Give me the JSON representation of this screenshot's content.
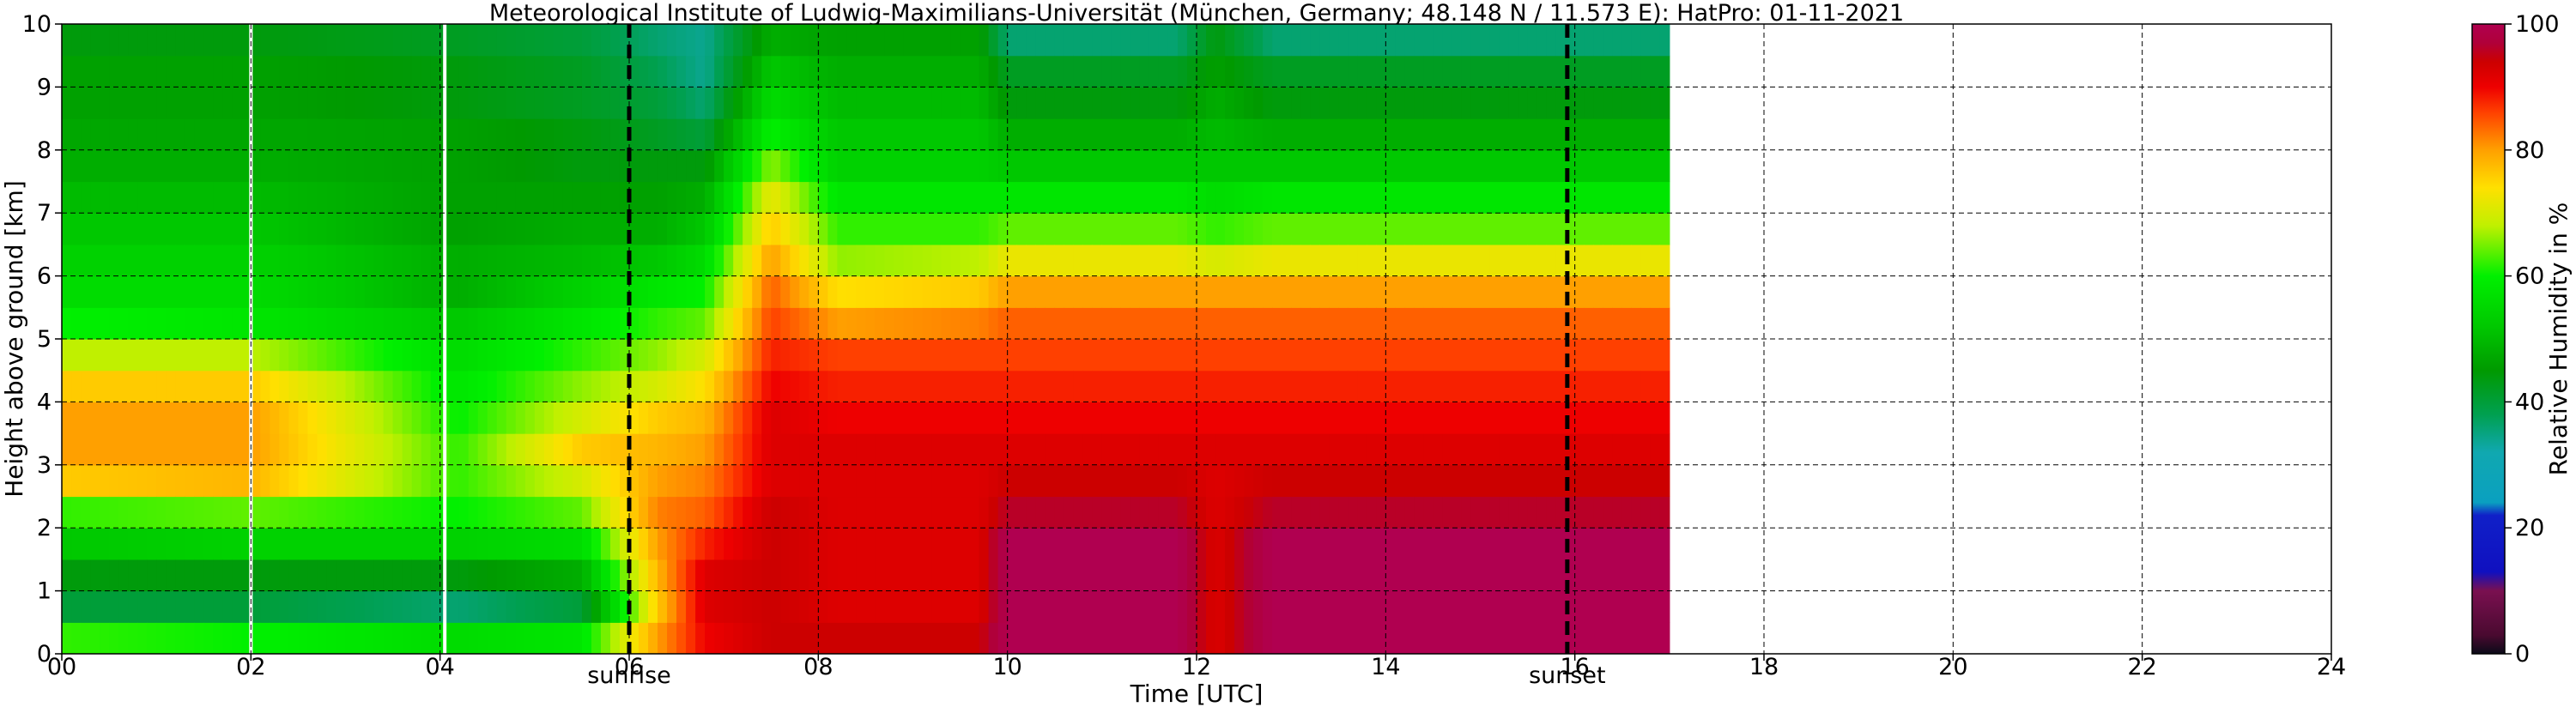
{
  "chart_data": {
    "type": "heatmap",
    "title": "Meteorological Institute of Ludwig-Maximilians-Universität (München, Germany; 48.148 N / 11.573 E):    HatPro: 01-11-2021",
    "xlabel": "Time [UTC]",
    "ylabel": "Height above ground [km]",
    "xlim": [
      0,
      24
    ],
    "ylim": [
      0,
      10
    ],
    "x_ticks": [
      "00",
      "02",
      "04",
      "06",
      "08",
      "10",
      "12",
      "14",
      "16",
      "18",
      "20",
      "22",
      "24"
    ],
    "y_ticks": [
      "0",
      "1",
      "2",
      "3",
      "4",
      "5",
      "6",
      "7",
      "8",
      "9",
      "10"
    ],
    "grid": true,
    "data_end_hour": 17.0,
    "colorbar": {
      "label": "Relative Humidity in %",
      "range": [
        0,
        100
      ],
      "ticks": [
        "0",
        "20",
        "40",
        "60",
        "80",
        "100"
      ],
      "stops": [
        {
          "value": 0,
          "color": "#0a0a18"
        },
        {
          "value": 3,
          "color": "#4a0a30"
        },
        {
          "value": 10,
          "color": "#7a1050"
        },
        {
          "value": 13,
          "color": "#1010c0"
        },
        {
          "value": 22,
          "color": "#1020c8"
        },
        {
          "value": 24,
          "color": "#0aa0c0"
        },
        {
          "value": 32,
          "color": "#10a8b0"
        },
        {
          "value": 38,
          "color": "#00a050"
        },
        {
          "value": 45,
          "color": "#009a00"
        },
        {
          "value": 52,
          "color": "#00c800"
        },
        {
          "value": 60,
          "color": "#00f000"
        },
        {
          "value": 68,
          "color": "#c0f000"
        },
        {
          "value": 74,
          "color": "#ffe000"
        },
        {
          "value": 80,
          "color": "#ffa000"
        },
        {
          "value": 86,
          "color": "#ff4000"
        },
        {
          "value": 90,
          "color": "#ee0000"
        },
        {
          "value": 94,
          "color": "#cc0000"
        },
        {
          "value": 97,
          "color": "#b0003a"
        },
        {
          "value": 100,
          "color": "#b00050"
        }
      ]
    },
    "annotations": [
      {
        "text": "sunrise",
        "x": 6.0
      },
      {
        "text": "sunset",
        "x": 15.92
      }
    ],
    "gaps": [
      2.0,
      4.05
    ],
    "rh_keypoints": [
      {
        "t": 0.0,
        "h": [
          62,
          40,
          44,
          52,
          62,
          76,
          80,
          80,
          76,
          68,
          60,
          56,
          54,
          52,
          50,
          48,
          47,
          46,
          46,
          44,
          44
        ]
      },
      {
        "t": 2.0,
        "h": [
          60,
          40,
          44,
          54,
          64,
          78,
          80,
          80,
          76,
          68,
          58,
          56,
          54,
          52,
          50,
          48,
          47,
          46,
          46,
          44,
          44
        ]
      },
      {
        "t": 4.2,
        "h": [
          56,
          36,
          44,
          54,
          60,
          62,
          62,
          60,
          58,
          56,
          52,
          48,
          48,
          46,
          46,
          46,
          46,
          44,
          44,
          42,
          42
        ]
      },
      {
        "t": 5.5,
        "h": [
          58,
          40,
          48,
          56,
          64,
          70,
          76,
          70,
          66,
          62,
          58,
          54,
          50,
          48,
          46,
          44,
          44,
          42,
          42,
          40,
          40
        ]
      },
      {
        "t": 6.3,
        "h": [
          80,
          76,
          78,
          80,
          82,
          80,
          78,
          76,
          70,
          66,
          62,
          58,
          52,
          48,
          46,
          44,
          42,
          40,
          38,
          36,
          32
        ]
      },
      {
        "t": 6.8,
        "h": [
          90,
          92,
          92,
          88,
          84,
          82,
          80,
          78,
          74,
          70,
          64,
          60,
          56,
          52,
          48,
          44,
          40,
          36,
          34,
          34,
          36
        ]
      },
      {
        "t": 7.5,
        "h": [
          94,
          94,
          94,
          94,
          94,
          92,
          92,
          92,
          90,
          88,
          86,
          84,
          80,
          76,
          72,
          66,
          60,
          56,
          52,
          48,
          46
        ]
      },
      {
        "t": 8.2,
        "h": [
          94,
          92,
          92,
          92,
          92,
          92,
          92,
          90,
          88,
          86,
          80,
          74,
          66,
          62,
          58,
          54,
          52,
          50,
          48,
          46,
          46
        ]
      },
      {
        "t": 9.7,
        "h": [
          94,
          92,
          92,
          92,
          92,
          92,
          92,
          90,
          88,
          86,
          82,
          76,
          68,
          62,
          58,
          54,
          52,
          50,
          48,
          46,
          46
        ]
      },
      {
        "t": 10.0,
        "h": [
          100,
          100,
          100,
          100,
          96,
          94,
          92,
          90,
          88,
          86,
          84,
          80,
          72,
          64,
          58,
          52,
          48,
          44,
          42,
          36,
          34
        ]
      },
      {
        "t": 11.8,
        "h": [
          100,
          100,
          100,
          100,
          96,
          94,
          92,
          90,
          88,
          86,
          84,
          80,
          72,
          64,
          58,
          52,
          48,
          44,
          42,
          36,
          34
        ]
      },
      {
        "t": 12.2,
        "h": [
          92,
          92,
          92,
          92,
          92,
          92,
          92,
          90,
          88,
          86,
          84,
          80,
          70,
          62,
          56,
          52,
          50,
          48,
          46,
          44,
          42
        ]
      },
      {
        "t": 12.8,
        "h": [
          100,
          100,
          100,
          100,
          96,
          94,
          92,
          90,
          88,
          86,
          84,
          80,
          72,
          64,
          58,
          52,
          48,
          44,
          42,
          36,
          34
        ]
      },
      {
        "t": 17.0,
        "h": [
          100,
          100,
          100,
          100,
          96,
          94,
          92,
          90,
          88,
          86,
          84,
          80,
          72,
          64,
          58,
          52,
          48,
          44,
          42,
          36,
          34
        ]
      }
    ]
  }
}
